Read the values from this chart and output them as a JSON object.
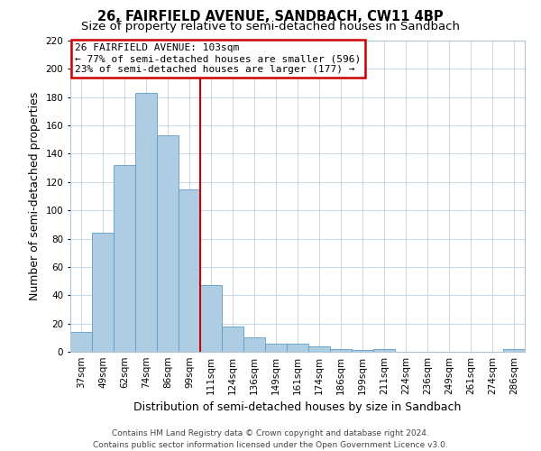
{
  "title_line1": "26, FAIRFIELD AVENUE, SANDBACH, CW11 4BP",
  "title_line2": "Size of property relative to semi-detached houses in Sandbach",
  "xlabel": "Distribution of semi-detached houses by size in Sandbach",
  "ylabel": "Number of semi-detached properties",
  "categories": [
    "37sqm",
    "49sqm",
    "62sqm",
    "74sqm",
    "86sqm",
    "99sqm",
    "111sqm",
    "124sqm",
    "136sqm",
    "149sqm",
    "161sqm",
    "174sqm",
    "186sqm",
    "199sqm",
    "211sqm",
    "224sqm",
    "236sqm",
    "249sqm",
    "261sqm",
    "274sqm",
    "286sqm"
  ],
  "values": [
    14,
    84,
    132,
    183,
    153,
    115,
    47,
    18,
    10,
    6,
    6,
    4,
    2,
    1,
    2,
    0,
    0,
    0,
    0,
    0,
    2
  ],
  "bar_color": "#aecde3",
  "bar_edge_color": "#5b9bc8",
  "vline_x": 5.5,
  "vline_color": "#cc0000",
  "annotation_title": "26 FAIRFIELD AVENUE: 103sqm",
  "annotation_line1": "← 77% of semi-detached houses are smaller (596)",
  "annotation_line2": "23% of semi-detached houses are larger (177) →",
  "annotation_box_color": "#ffffff",
  "annotation_box_edge_color": "#cc0000",
  "ylim": [
    0,
    220
  ],
  "yticks": [
    0,
    20,
    40,
    60,
    80,
    100,
    120,
    140,
    160,
    180,
    200,
    220
  ],
  "footer_line1": "Contains HM Land Registry data © Crown copyright and database right 2024.",
  "footer_line2": "Contains public sector information licensed under the Open Government Licence v3.0.",
  "title_fontsize": 10.5,
  "subtitle_fontsize": 9.5,
  "axis_label_fontsize": 9,
  "tick_fontsize": 7.5,
  "annotation_fontsize": 8,
  "footer_fontsize": 6.5
}
